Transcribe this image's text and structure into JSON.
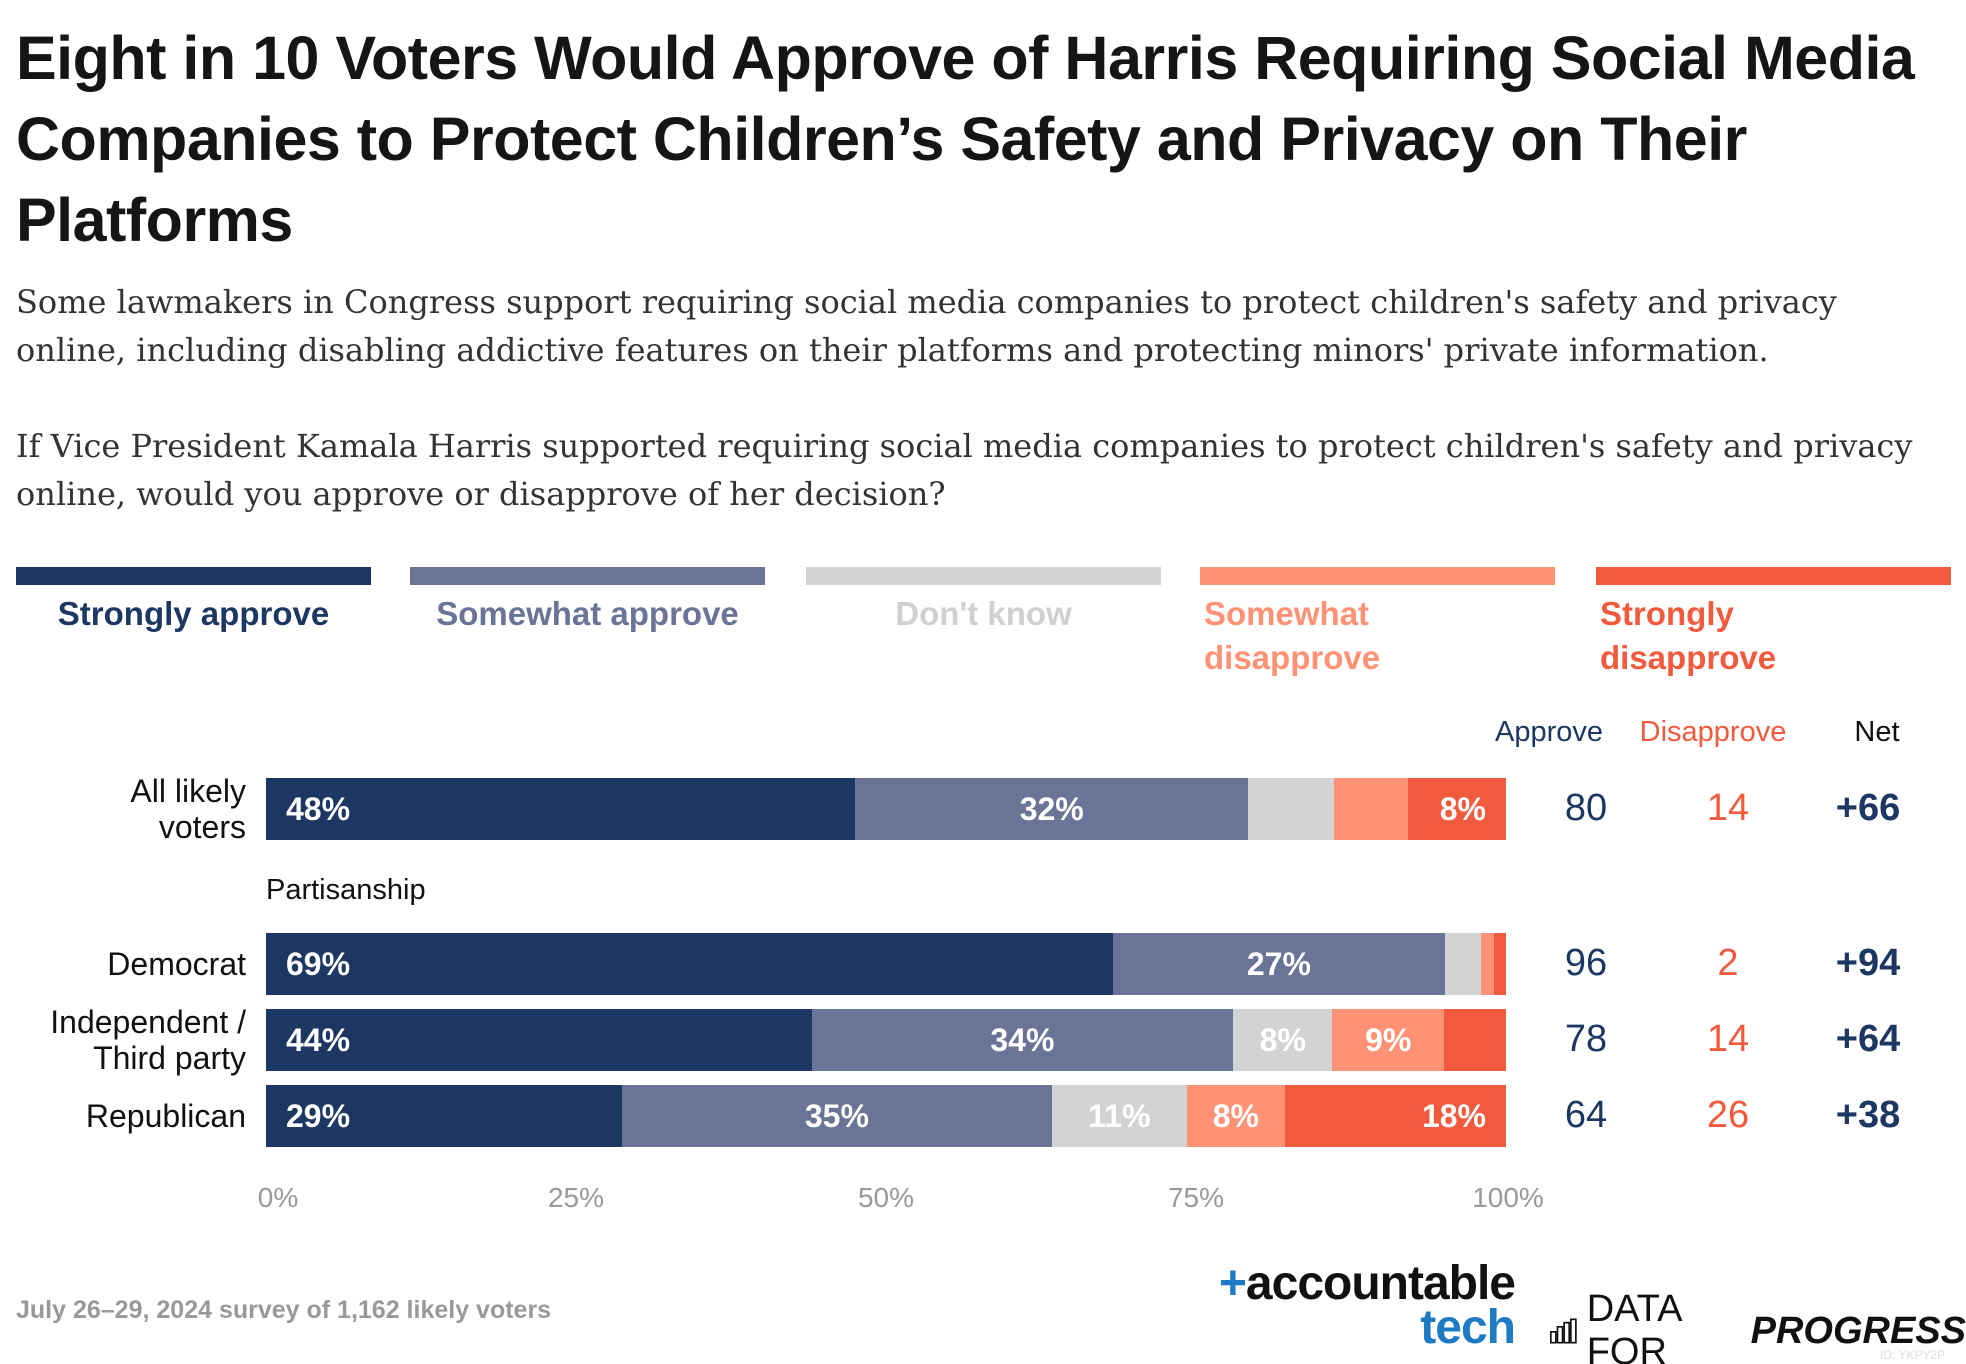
{
  "title": "Eight in 10 Voters Would Approve of Harris Requiring Social Media Companies to Protect Children’s Safety and Privacy on Their Platforms",
  "subtitle_1": "Some lawmakers in Congress support requiring social media companies to protect children's safety and privacy online, including disabling addictive features on their platforms and protecting minors' private information.",
  "subtitle_2": "If Vice President Kamala Harris supported requiring social media companies to protect children's safety and privacy online, would you approve or disapprove of her decision?",
  "columns": {
    "approve": "Approve",
    "disapprove": "Disapprove",
    "net": "Net"
  },
  "group_label": "Partisanship",
  "footer": {
    "note": "July 26–29, 2024 survey of 1,162 likely voters",
    "logo1_a": "+accountable",
    "logo1_b": "tech",
    "logo2_a": "DATA FOR",
    "logo2_b": "PROGRESS",
    "id": "ID: YKPY2P"
  },
  "chart_data": {
    "type": "bar",
    "orientation": "horizontal-stacked",
    "xlim": [
      0,
      100
    ],
    "x_ticks": [
      "0%",
      "25%",
      "50%",
      "75%",
      "100%"
    ],
    "legend_position": "top",
    "series": [
      {
        "name": "Strongly approve",
        "color": "#1d3763",
        "values": [
          48,
          69,
          44,
          29
        ],
        "labels": [
          "48%",
          "69%",
          "44%",
          "29%"
        ]
      },
      {
        "name": "Somewhat approve",
        "color": "#6a7496",
        "values": [
          32,
          27,
          34,
          35
        ],
        "labels": [
          "32%",
          "27%",
          "34%",
          "35%"
        ]
      },
      {
        "name": "Don't know",
        "color": "#d2d3d5",
        "values": [
          7,
          3,
          8,
          11
        ],
        "labels": [
          "",
          "",
          "8%",
          "11%"
        ]
      },
      {
        "name": "Somewhat disapprove",
        "color": "#ff9275",
        "values": [
          6,
          1,
          9,
          8
        ],
        "labels": [
          "",
          "",
          "9%",
          "8%"
        ]
      },
      {
        "name": "Strongly disapprove",
        "color": "#f15a3c",
        "values": [
          8,
          1,
          5,
          18
        ],
        "labels": [
          "8%",
          "",
          "",
          "18%"
        ]
      }
    ],
    "categories": [
      "All likely voters",
      "Democrat",
      "Independent / Third party",
      "Republican"
    ],
    "approve": [
      "80",
      "96",
      "78",
      "64"
    ],
    "disapprove": [
      "14",
      "2",
      "14",
      "26"
    ],
    "net": [
      "+66",
      "+94",
      "+64",
      "+38"
    ]
  }
}
